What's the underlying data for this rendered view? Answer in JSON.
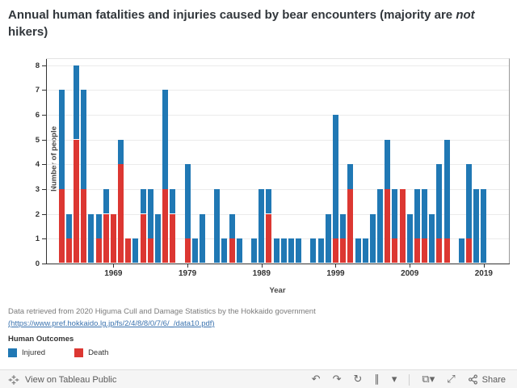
{
  "title": {
    "before_italic": "Annual human fatalities and injuries caused by bear encounters (majority are ",
    "italic": "not",
    "after_italic": " hikers)"
  },
  "chart_data": {
    "type": "bar",
    "stacked": true,
    "ylabel": "Number of people",
    "xlabel": "Year",
    "ylim": [
      0,
      8
    ],
    "yticks": [
      0,
      1,
      2,
      3,
      4,
      5,
      6,
      7,
      8
    ],
    "xticks": [
      1969,
      1979,
      1989,
      1999,
      2009,
      2019
    ],
    "grid": "horizontal",
    "legend_position": "bottom-left",
    "years": [
      1962,
      1963,
      1964,
      1965,
      1966,
      1967,
      1968,
      1969,
      1970,
      1971,
      1972,
      1973,
      1974,
      1975,
      1976,
      1977,
      1978,
      1979,
      1980,
      1981,
      1982,
      1983,
      1984,
      1985,
      1986,
      1987,
      1988,
      1989,
      1990,
      1991,
      1992,
      1993,
      1994,
      1995,
      1996,
      1997,
      1998,
      1999,
      2000,
      2001,
      2002,
      2003,
      2004,
      2005,
      2006,
      2007,
      2008,
      2009,
      2010,
      2011,
      2012,
      2013,
      2014,
      2015,
      2016,
      2017,
      2018,
      2019,
      2020
    ],
    "series": [
      {
        "name": "Death",
        "color": "#dc3732",
        "values": [
          3,
          1,
          5,
          3,
          0,
          1,
          2,
          2,
          4,
          1,
          0,
          2,
          1,
          0,
          3,
          2,
          0,
          1,
          0,
          0,
          0,
          0,
          0,
          1,
          0,
          0,
          0,
          0,
          2,
          0,
          0,
          0,
          0,
          0,
          0,
          0,
          0,
          1,
          1,
          3,
          0,
          0,
          0,
          0,
          3,
          1,
          3,
          0,
          1,
          1,
          0,
          1,
          1,
          0,
          0,
          1,
          0,
          0,
          0
        ]
      },
      {
        "name": "Injured",
        "color": "#2078b4",
        "values": [
          4,
          1,
          3,
          4,
          2,
          1,
          1,
          0,
          1,
          0,
          1,
          1,
          2,
          2,
          4,
          1,
          0,
          3,
          1,
          2,
          0,
          3,
          1,
          1,
          1,
          0,
          1,
          3,
          1,
          1,
          1,
          1,
          1,
          0,
          1,
          1,
          2,
          5,
          1,
          1,
          1,
          1,
          2,
          3,
          2,
          2,
          0,
          2,
          2,
          2,
          2,
          3,
          4,
          0,
          1,
          3,
          3,
          3,
          0
        ]
      }
    ]
  },
  "footer": {
    "source_text": "Data retrieved from 2020 Higuma Cull and Damage Statistics by the Hokkaido government",
    "link_text": "(https://www.pref.hokkaido.lg.jp/fs/2/4/8/8/0/7/6/_/data10.pdf)"
  },
  "legend": {
    "title": "Human Outcomes",
    "items": [
      {
        "label": "Injured",
        "color": "#2078b4"
      },
      {
        "label": "Death",
        "color": "#dc3732"
      }
    ]
  },
  "toolbar": {
    "view_text": "View on Tableau Public",
    "share_label": "Share",
    "icons": {
      "undo": "↶",
      "redo": "↷",
      "replay": "↻",
      "pause": "∥",
      "chevron": "▾",
      "device": "⧉",
      "device_chevron": "▾",
      "fullscreen": "⤢"
    }
  }
}
